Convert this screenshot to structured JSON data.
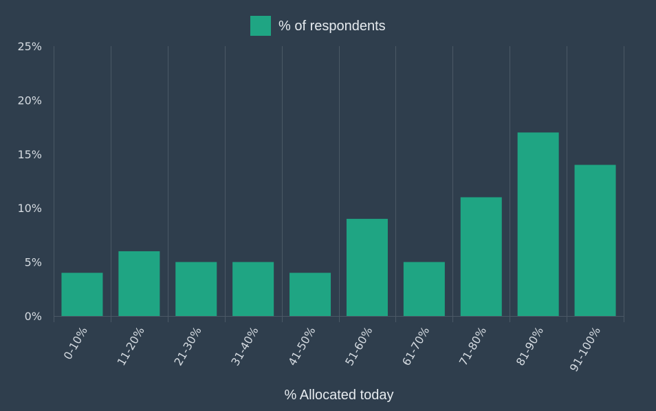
{
  "colors": {
    "background": "#2f3e4d",
    "bar": "#1fa583",
    "gridline": "#4b5966",
    "text": "#e6ebef"
  },
  "chart_data": {
    "type": "bar",
    "title": "",
    "xlabel": "% Allocated today",
    "ylabel": "",
    "legend": {
      "position": "top-center",
      "entries": [
        "% of respondents"
      ]
    },
    "grid": {
      "vertical": true,
      "horizontal": false
    },
    "categories": [
      "0-10%",
      "11-20%",
      "21-30%",
      "31-40%",
      "41-50%",
      "51-60%",
      "61-70%",
      "71-80%",
      "81-90%",
      "91-100%"
    ],
    "series": [
      {
        "name": "% of respondents",
        "values": [
          4,
          6,
          5,
          5,
          4,
          9,
          5,
          11,
          17,
          14
        ]
      }
    ],
    "ylim": [
      0,
      25
    ],
    "yticks": [
      0,
      5,
      10,
      15,
      20,
      25
    ],
    "ytick_labels": [
      "0%",
      "5%",
      "10%",
      "15%",
      "20%",
      "25%"
    ]
  }
}
